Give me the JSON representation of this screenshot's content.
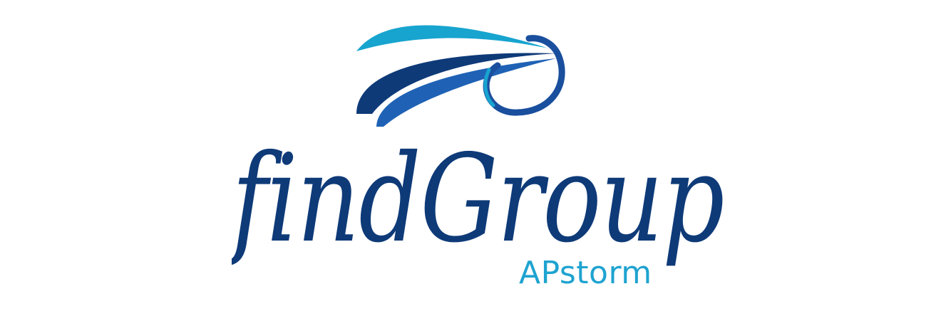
{
  "logo": {
    "wordmark": "findGroup",
    "subbrand": "APstorm",
    "emblem_icon": "swoosh-orbit-icon"
  },
  "colors": {
    "background": "#ffffff",
    "navy": "#0e3a78",
    "mid_blue": "#1f62b5",
    "cyan": "#17a4cf",
    "subbrand": "#1ea3d0"
  }
}
